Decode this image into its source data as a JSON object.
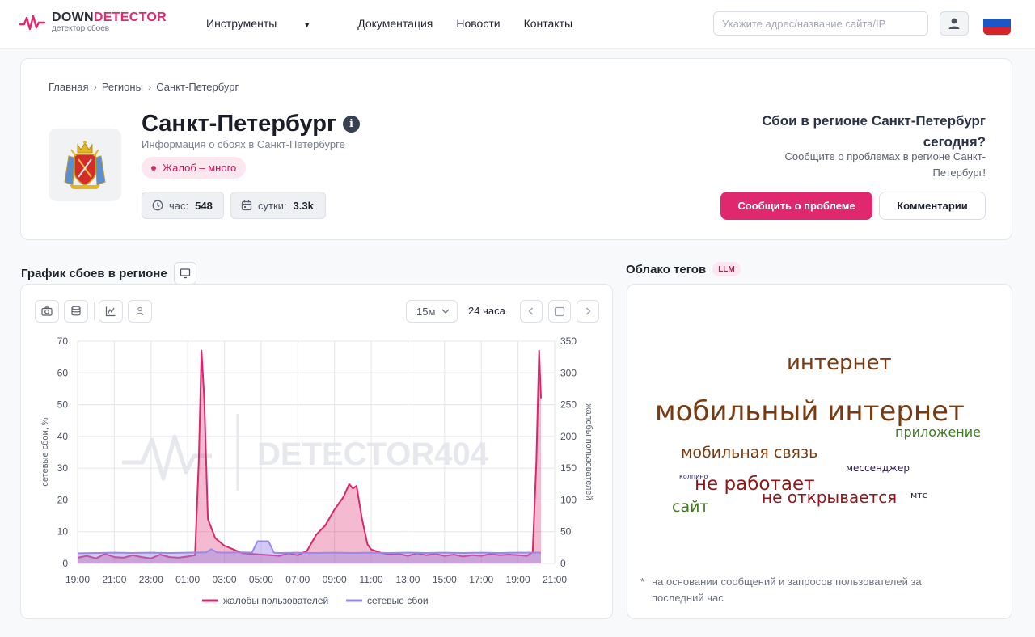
{
  "header": {
    "logo": {
      "name_part1": "DOWN",
      "name_part2": "DETECTOR",
      "subtitle": "детектор сбоев"
    },
    "nav": [
      {
        "label": "Инструменты",
        "has_dropdown": true
      },
      {
        "label": "Документация"
      },
      {
        "label": "Новости"
      },
      {
        "label": "Контакты"
      }
    ],
    "search": {
      "placeholder": "Укажите адрес/название сайта/IP",
      "value": ""
    },
    "user_icon": "user-icon",
    "flag": "russia-flag"
  },
  "breadcrumb": [
    "Главная",
    "Регионы",
    "Санкт-Петербург"
  ],
  "region": {
    "title": "Санкт-Петербург",
    "subtitle": "Информация о сбоях в Санкт-Петербурге",
    "badge": "Жалоб – много",
    "stats": {
      "hour_label": "час:",
      "hour_value": "548",
      "day_label": "сутки:",
      "day_value": "3.3k"
    }
  },
  "report": {
    "question": "Сбои в регионе Санкт-Петербург сегодня?",
    "description": "Сообщите о проблемах в регионе Санкт-Петербург!",
    "report_button": "Сообщить о проблеме",
    "comments_button": "Комментарии"
  },
  "chart_section": {
    "title": "График сбоев в регионе",
    "period": "15м",
    "range": "24 часа",
    "watermark": "DETECTOR404"
  },
  "chart_data": {
    "type": "line",
    "x": [
      "19:00",
      "21:00",
      "23:00",
      "01:00",
      "03:00",
      "05:00",
      "07:00",
      "09:00",
      "11:00",
      "13:00",
      "15:00",
      "17:00",
      "19:00",
      "21:00"
    ],
    "ylabel": "сетевые сбои, %",
    "ylim": [
      0,
      70
    ],
    "ylabel_right": "жалобы пользователей",
    "ylim_right": [
      0,
      350
    ],
    "legend_position": "bottom",
    "grid": true,
    "series": [
      {
        "name": "жалобы пользователей",
        "axis": "right",
        "color": "#d9276d",
        "points": [
          [
            0,
            9
          ],
          [
            0.5,
            12
          ],
          [
            1,
            8
          ],
          [
            1.5,
            15
          ],
          [
            2,
            10
          ],
          [
            2.5,
            9
          ],
          [
            3,
            13
          ],
          [
            3.5,
            10
          ],
          [
            4,
            8
          ],
          [
            4.5,
            14
          ],
          [
            5,
            10
          ],
          [
            5.5,
            9
          ],
          [
            6,
            11
          ],
          [
            6.4,
            13
          ],
          [
            6.6,
            160
          ],
          [
            6.75,
            335
          ],
          [
            6.9,
            260
          ],
          [
            7.1,
            70
          ],
          [
            7.5,
            40
          ],
          [
            8,
            28
          ],
          [
            8.5,
            22
          ],
          [
            9,
            16
          ],
          [
            9.5,
            15
          ],
          [
            10,
            14
          ],
          [
            10.5,
            13
          ],
          [
            11,
            12
          ],
          [
            11.5,
            16
          ],
          [
            12,
            13
          ],
          [
            12.5,
            20
          ],
          [
            13,
            45
          ],
          [
            13.5,
            60
          ],
          [
            14,
            85
          ],
          [
            14.5,
            105
          ],
          [
            14.8,
            125
          ],
          [
            15,
            118
          ],
          [
            15.2,
            122
          ],
          [
            15.5,
            70
          ],
          [
            15.8,
            30
          ],
          [
            16,
            22
          ],
          [
            16.5,
            17
          ],
          [
            17,
            14
          ],
          [
            17.5,
            15
          ],
          [
            18,
            12
          ],
          [
            18.5,
            16
          ],
          [
            19,
            13
          ],
          [
            19.5,
            15
          ],
          [
            20,
            12
          ],
          [
            20.5,
            14
          ],
          [
            21,
            11
          ],
          [
            21.5,
            13
          ],
          [
            22,
            12
          ],
          [
            22.5,
            15
          ],
          [
            23,
            13
          ],
          [
            23.5,
            14
          ],
          [
            24,
            13
          ],
          [
            24.5,
            12
          ],
          [
            24.8,
            18
          ],
          [
            25,
            160
          ],
          [
            25.15,
            335
          ],
          [
            25.25,
            260
          ]
        ]
      },
      {
        "name": "сетевые сбои",
        "axis": "left",
        "color": "#9b87e8",
        "points": [
          [
            0,
            3.2
          ],
          [
            1,
            3.3
          ],
          [
            2,
            3.4
          ],
          [
            3,
            3.3
          ],
          [
            4,
            3.4
          ],
          [
            5,
            3.3
          ],
          [
            6,
            3.4
          ],
          [
            7,
            3.5
          ],
          [
            7.3,
            4.5
          ],
          [
            7.6,
            3.5
          ],
          [
            8,
            3.4
          ],
          [
            9,
            3.5
          ],
          [
            9.5,
            3.4
          ],
          [
            9.8,
            7
          ],
          [
            10.4,
            7
          ],
          [
            10.7,
            3.4
          ],
          [
            11,
            3.3
          ],
          [
            12,
            3.4
          ],
          [
            13,
            3.3
          ],
          [
            14,
            3.4
          ],
          [
            15,
            3.3
          ],
          [
            16,
            3.4
          ],
          [
            17,
            3.3
          ],
          [
            18,
            3.4
          ],
          [
            19,
            3.3
          ],
          [
            20,
            3.4
          ],
          [
            21,
            3.3
          ],
          [
            22,
            3.4
          ],
          [
            23,
            3.3
          ],
          [
            24,
            3.4
          ],
          [
            25,
            3.4
          ],
          [
            25.25,
            3.4
          ]
        ]
      }
    ]
  },
  "tag_cloud": {
    "title": "Облако тегов",
    "badge": "LLM",
    "words": [
      {
        "text": "интернет",
        "size": 26,
        "color": "#7a3a10"
      },
      {
        "text": "мобильный интернет",
        "size": 34,
        "color": "#7a3a10"
      },
      {
        "text": "приложение",
        "size": 16,
        "color": "#3d7a1e"
      },
      {
        "text": "мобильная связь",
        "size": 19,
        "color": "#7a3a10"
      },
      {
        "text": "мессенджер",
        "size": 12,
        "color": "#2a1a4a"
      },
      {
        "text": "колпино",
        "size": 8,
        "color": "#2a1a6a"
      },
      {
        "text": "не работает",
        "size": 23,
        "color": "#8a1a1a"
      },
      {
        "text": "не открывается",
        "size": 20,
        "color": "#8a1a1a"
      },
      {
        "text": "мтс",
        "size": 11,
        "color": "#2a1a4a"
      },
      {
        "text": "сайт",
        "size": 19,
        "color": "#3d7a1e"
      }
    ],
    "footnote": "на основании сообщений и запросов пользователей за последний час"
  }
}
